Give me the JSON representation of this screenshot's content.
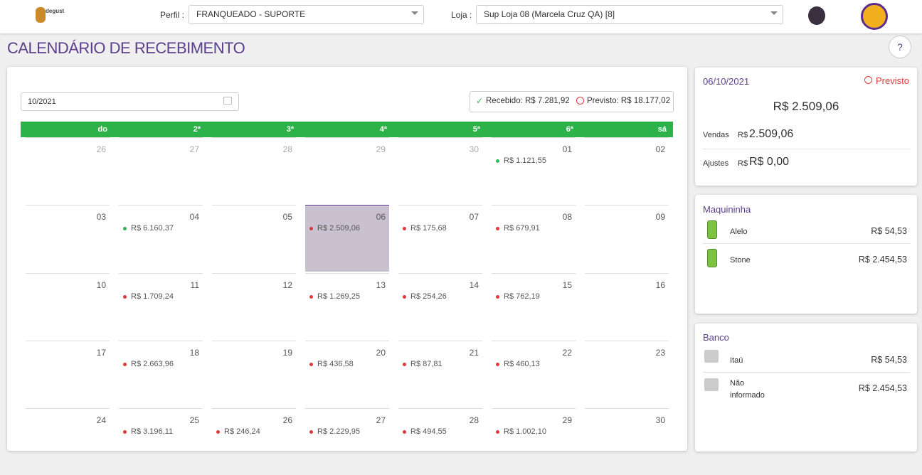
{
  "header": {
    "logo": "degust",
    "profile_label": "Perfil :",
    "profile": "FRANQUEADO - SUPORTE",
    "store_label": "Loja :",
    "store": "Sup Loja 08 (Marcela Cruz QA) [8]"
  },
  "page": {
    "title": "CALENDÁRIO DE RECEBIMENTO",
    "help": "?"
  },
  "calendar": {
    "month": "10/2021",
    "received": "Recebido: R$ 7.281,92",
    "forecast": "Previsto: R$ 18.177,02",
    "header_color": "#2db24a",
    "weekdays": [
      "do",
      "2ª",
      "3ª",
      "4ª",
      "5ª",
      "6ª",
      "sá"
    ],
    "weeks": [
      [
        {
          "day": "26",
          "muted": true
        },
        {
          "day": "27",
          "muted": true
        },
        {
          "day": "28",
          "muted": true
        },
        {
          "day": "29",
          "muted": true
        },
        {
          "day": "30",
          "muted": true
        },
        {
          "day": "01",
          "amount": "R$ 1.121,55",
          "color": "#2eb94f"
        },
        {
          "day": "02"
        }
      ],
      [
        {
          "day": "03"
        },
        {
          "day": "04",
          "amount": "R$ 6.160,37",
          "color": "#2eb94f"
        },
        {
          "day": "05"
        },
        {
          "day": "06",
          "amount": "R$ 2.509,06",
          "color": "#e03a3a",
          "selected": true
        },
        {
          "day": "07",
          "amount": "R$ 175,68",
          "color": "#e03a3a"
        },
        {
          "day": "08",
          "amount": "R$ 679,91",
          "color": "#e03a3a"
        },
        {
          "day": "09"
        }
      ],
      [
        {
          "day": "10"
        },
        {
          "day": "11",
          "amount": "R$ 1.709,24",
          "color": "#e03a3a"
        },
        {
          "day": "12"
        },
        {
          "day": "13",
          "amount": "R$ 1.269,25",
          "color": "#e03a3a"
        },
        {
          "day": "14",
          "amount": "R$ 254,26",
          "color": "#e03a3a"
        },
        {
          "day": "15",
          "amount": "R$ 762,19",
          "color": "#e03a3a"
        },
        {
          "day": "16"
        }
      ],
      [
        {
          "day": "17"
        },
        {
          "day": "18",
          "amount": "R$ 2.663,96",
          "color": "#e03a3a"
        },
        {
          "day": "19"
        },
        {
          "day": "20",
          "amount": "R$ 436,58",
          "color": "#e03a3a"
        },
        {
          "day": "21",
          "amount": "R$ 87,81",
          "color": "#e03a3a"
        },
        {
          "day": "22",
          "amount": "R$ 460,13",
          "color": "#e03a3a"
        },
        {
          "day": "23"
        }
      ],
      [
        {
          "day": "24"
        },
        {
          "day": "25",
          "amount": "R$ 3.196,11",
          "color": "#e03a3a"
        },
        {
          "day": "26",
          "amount": "R$ 246,24",
          "color": "#e03a3a"
        },
        {
          "day": "27",
          "amount": "R$ 2.229,95",
          "color": "#e03a3a"
        },
        {
          "day": "28",
          "amount": "R$ 494,55",
          "color": "#e03a3a"
        },
        {
          "day": "29",
          "amount": "R$ 1.002,10",
          "color": "#e03a3a"
        },
        {
          "day": "30"
        }
      ]
    ]
  },
  "detail": {
    "date": "06/10/2021",
    "status": "Previsto",
    "total": "R$ 2.509,06",
    "sales_label": "Vendas",
    "sales_currency": "R$",
    "sales": "2.509,06",
    "adjust_label": "Ajustes",
    "adjust_currency": "R$",
    "adjust": "R$ 0,00"
  },
  "machines": {
    "title": "Maquininha",
    "items": [
      {
        "name": "Alelo",
        "amount": "R$ 54,53"
      },
      {
        "name": "Stone",
        "amount": "R$ 2.454,53"
      }
    ]
  },
  "banks": {
    "title": "Banco",
    "items": [
      {
        "name": "Itaú",
        "amount": "R$ 54,53"
      },
      {
        "name": "Não informado",
        "amount": "R$ 2.454,53"
      }
    ]
  }
}
